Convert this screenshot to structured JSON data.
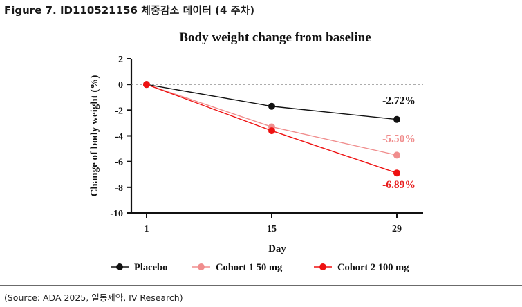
{
  "figure_title": "Figure 7. ID110521156 체중감소 데이터 (4 주차)",
  "source_note": "(Source: ADA 2025, 일동제약, IV Research)",
  "colors": {
    "placebo": "#111111",
    "cohort1": "#f08d8d",
    "cohort2": "#ee1111",
    "label_cohort1": "#f08d8d",
    "label_cohort2": "#e81e1e"
  },
  "chart_data": {
    "type": "line",
    "title": "Body weight change from baseline",
    "xlabel": "Day",
    "ylabel": "Change of body weight (%)",
    "x": [
      1,
      15,
      29
    ],
    "x_ticks": [
      "1",
      "15",
      "29"
    ],
    "ylim": [
      -10,
      2
    ],
    "y_ticks": [
      "2",
      "0",
      "-2",
      "-4",
      "-6",
      "-8",
      "-10"
    ],
    "baseline_reference": 0,
    "legend_position": "bottom",
    "series": [
      {
        "name": "Placebo",
        "values": [
          0,
          -1.7,
          -2.72
        ],
        "end_label": "-2.72%"
      },
      {
        "name": "Cohort 1 50 mg",
        "values": [
          0,
          -3.3,
          -5.5
        ],
        "end_label": "-5.50%"
      },
      {
        "name": "Cohort 2 100 mg",
        "values": [
          0,
          -3.6,
          -6.89
        ],
        "end_label": "-6.89%"
      }
    ]
  }
}
